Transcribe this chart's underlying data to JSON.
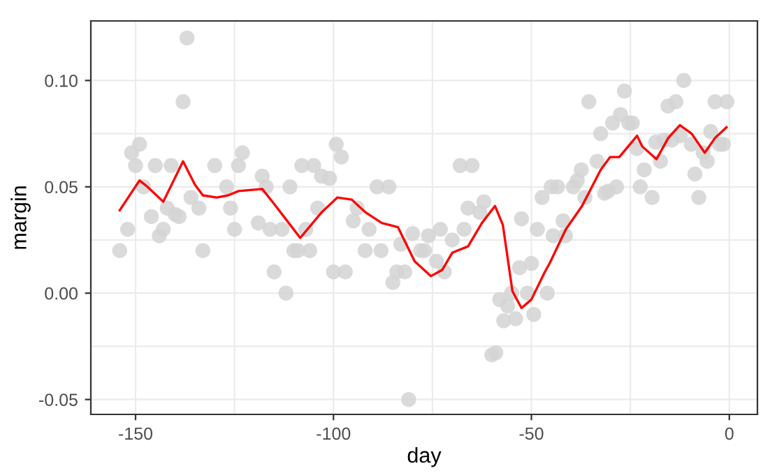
{
  "chart_data": {
    "type": "scatter",
    "xlabel": "day",
    "ylabel": "margin",
    "xlim": [
      -161.3,
      7.1
    ],
    "ylim": [
      -0.057,
      0.128
    ],
    "xticks": [
      {
        "value": -150,
        "label": "-150"
      },
      {
        "value": -125,
        "label": null
      },
      {
        "value": -100,
        "label": "-100"
      },
      {
        "value": -75,
        "label": null
      },
      {
        "value": -50,
        "label": "-50"
      },
      {
        "value": -25,
        "label": null
      },
      {
        "value": 0,
        "label": "0"
      }
    ],
    "yticks": [
      {
        "value": -0.05,
        "label": "-0.05"
      },
      {
        "value": -0.025,
        "label": null
      },
      {
        "value": 0,
        "label": "0.00"
      },
      {
        "value": 0.025,
        "label": null
      },
      {
        "value": 0.05,
        "label": "0.05"
      },
      {
        "value": 0.075,
        "label": null
      },
      {
        "value": 0.1,
        "label": "0.10"
      }
    ],
    "grid": true,
    "marker": "circle",
    "series": [
      {
        "color": "#d3d3d3",
        "x": [
          -154,
          -152,
          -151,
          -150,
          -149,
          -148,
          -146,
          -145,
          -144,
          -143,
          -142,
          -141,
          -140,
          -139,
          -138,
          -137,
          -136,
          -134,
          -133,
          -130,
          -127,
          -126,
          -125,
          -124,
          -123,
          -119,
          -118,
          -117,
          -116,
          -115,
          -113,
          -112,
          -111,
          -110,
          -109,
          -108,
          -107,
          -106,
          -105,
          -104,
          -103,
          -101,
          -100,
          -99.3,
          -98,
          -97,
          -95,
          -94,
          -92,
          -91,
          -89,
          -88,
          -86,
          -85,
          -84,
          -83,
          -82,
          -81,
          -80,
          -78,
          -77,
          -76,
          -74,
          -73,
          -72,
          -70,
          -68,
          -67,
          -66,
          -65,
          -63,
          -62,
          -60,
          -59,
          -58,
          -57,
          -56,
          -55,
          -54,
          -53,
          -52.5,
          -51,
          -50,
          -49.4,
          -48.5,
          -47.3,
          -46,
          -45,
          -44.5,
          -43.4,
          -42,
          -41.4,
          -39.4,
          -38.4,
          -37.4,
          -36.5,
          -35.5,
          -33.4,
          -32.5,
          -31.5,
          -30.6,
          -29.5,
          -28.5,
          -27.5,
          -26.5,
          -25.4,
          -24.5,
          -23.4,
          -22.5,
          -21.5,
          -19.5,
          -18.6,
          -17.4,
          -16.5,
          -15.5,
          -14.5,
          -13.5,
          -12.4,
          -11.5,
          -9.6,
          -8.7,
          -7.7,
          -6.6,
          -5.6,
          -4.7,
          -3.6,
          -2.5,
          -1.5,
          -0.6
        ],
        "values": [
          0.02,
          0.03,
          0.066,
          0.06,
          0.07,
          0.05,
          0.036,
          0.06,
          0.027,
          0.03,
          0.04,
          0.06,
          0.037,
          0.036,
          0.09,
          0.12,
          0.045,
          0.04,
          0.02,
          0.06,
          0.05,
          0.04,
          0.03,
          0.06,
          0.066,
          0.033,
          0.055,
          0.05,
          0.03,
          0.01,
          0.03,
          0.0,
          0.05,
          0.02,
          0.02,
          0.06,
          0.03,
          0.02,
          0.06,
          0.04,
          0.055,
          0.054,
          0.01,
          0.07,
          0.064,
          0.01,
          0.034,
          0.04,
          0.02,
          0.03,
          0.05,
          0.02,
          0.05,
          0.005,
          0.01,
          0.023,
          0.01,
          -0.05,
          0.028,
          0.02,
          0.02,
          0.027,
          0.015,
          0.03,
          0.01,
          0.025,
          0.06,
          0.03,
          0.04,
          0.06,
          0.038,
          0.043,
          -0.029,
          -0.028,
          -0.003,
          -0.013,
          -0.006,
          0.0,
          -0.012,
          0.012,
          0.035,
          0.0,
          0.014,
          -0.01,
          0.03,
          0.045,
          0.0,
          0.05,
          0.027,
          0.05,
          0.034,
          0.027,
          0.05,
          0.053,
          0.058,
          0.045,
          0.09,
          0.062,
          0.075,
          0.047,
          0.048,
          0.08,
          0.05,
          0.084,
          0.095,
          0.08,
          0.08,
          0.068,
          0.05,
          0.058,
          0.045,
          0.071,
          0.062,
          0.072,
          0.088,
          0.072,
          0.09,
          0.074,
          0.1,
          0.07,
          0.056,
          0.045,
          0.066,
          0.062,
          0.076,
          0.09,
          0.07,
          0.07,
          0.09
        ]
      },
      {
        "type": "line",
        "color": "#ff0000",
        "marker": "none",
        "x": [
          -154,
          -149,
          -147,
          -143,
          -138,
          -135,
          -133,
          -129.5,
          -126.6,
          -124,
          -118,
          -115,
          -111.3,
          -108.4,
          -103,
          -99,
          -95.4,
          -91.9,
          -87.8,
          -83.7,
          -79.5,
          -75.4,
          -72.5,
          -70,
          -66,
          -62.5,
          -59.2,
          -57.2,
          -54.8,
          -52.5,
          -50,
          -46.6,
          -45.4,
          -41.3,
          -37.2,
          -32.5,
          -30.1,
          -27.8,
          -23.3,
          -22,
          -18.4,
          -15.4,
          -12.5,
          -9.5,
          -6.2,
          -3.6,
          -0.7
        ],
        "values": [
          0.039,
          0.053,
          0.05,
          0.043,
          0.062,
          0.051,
          0.046,
          0.045,
          0.046,
          0.048,
          0.049,
          0.042,
          0.033,
          0.026,
          0.038,
          0.045,
          0.044,
          0.038,
          0.033,
          0.031,
          0.015,
          0.008,
          0.011,
          0.019,
          0.022,
          0.033,
          0.041,
          0.032,
          0.001,
          -0.007,
          -0.003,
          0.01,
          0.014,
          0.03,
          0.041,
          0.058,
          0.064,
          0.064,
          0.074,
          0.069,
          0.063,
          0.073,
          0.079,
          0.075,
          0.066,
          0.073,
          0.078
        ]
      }
    ]
  }
}
